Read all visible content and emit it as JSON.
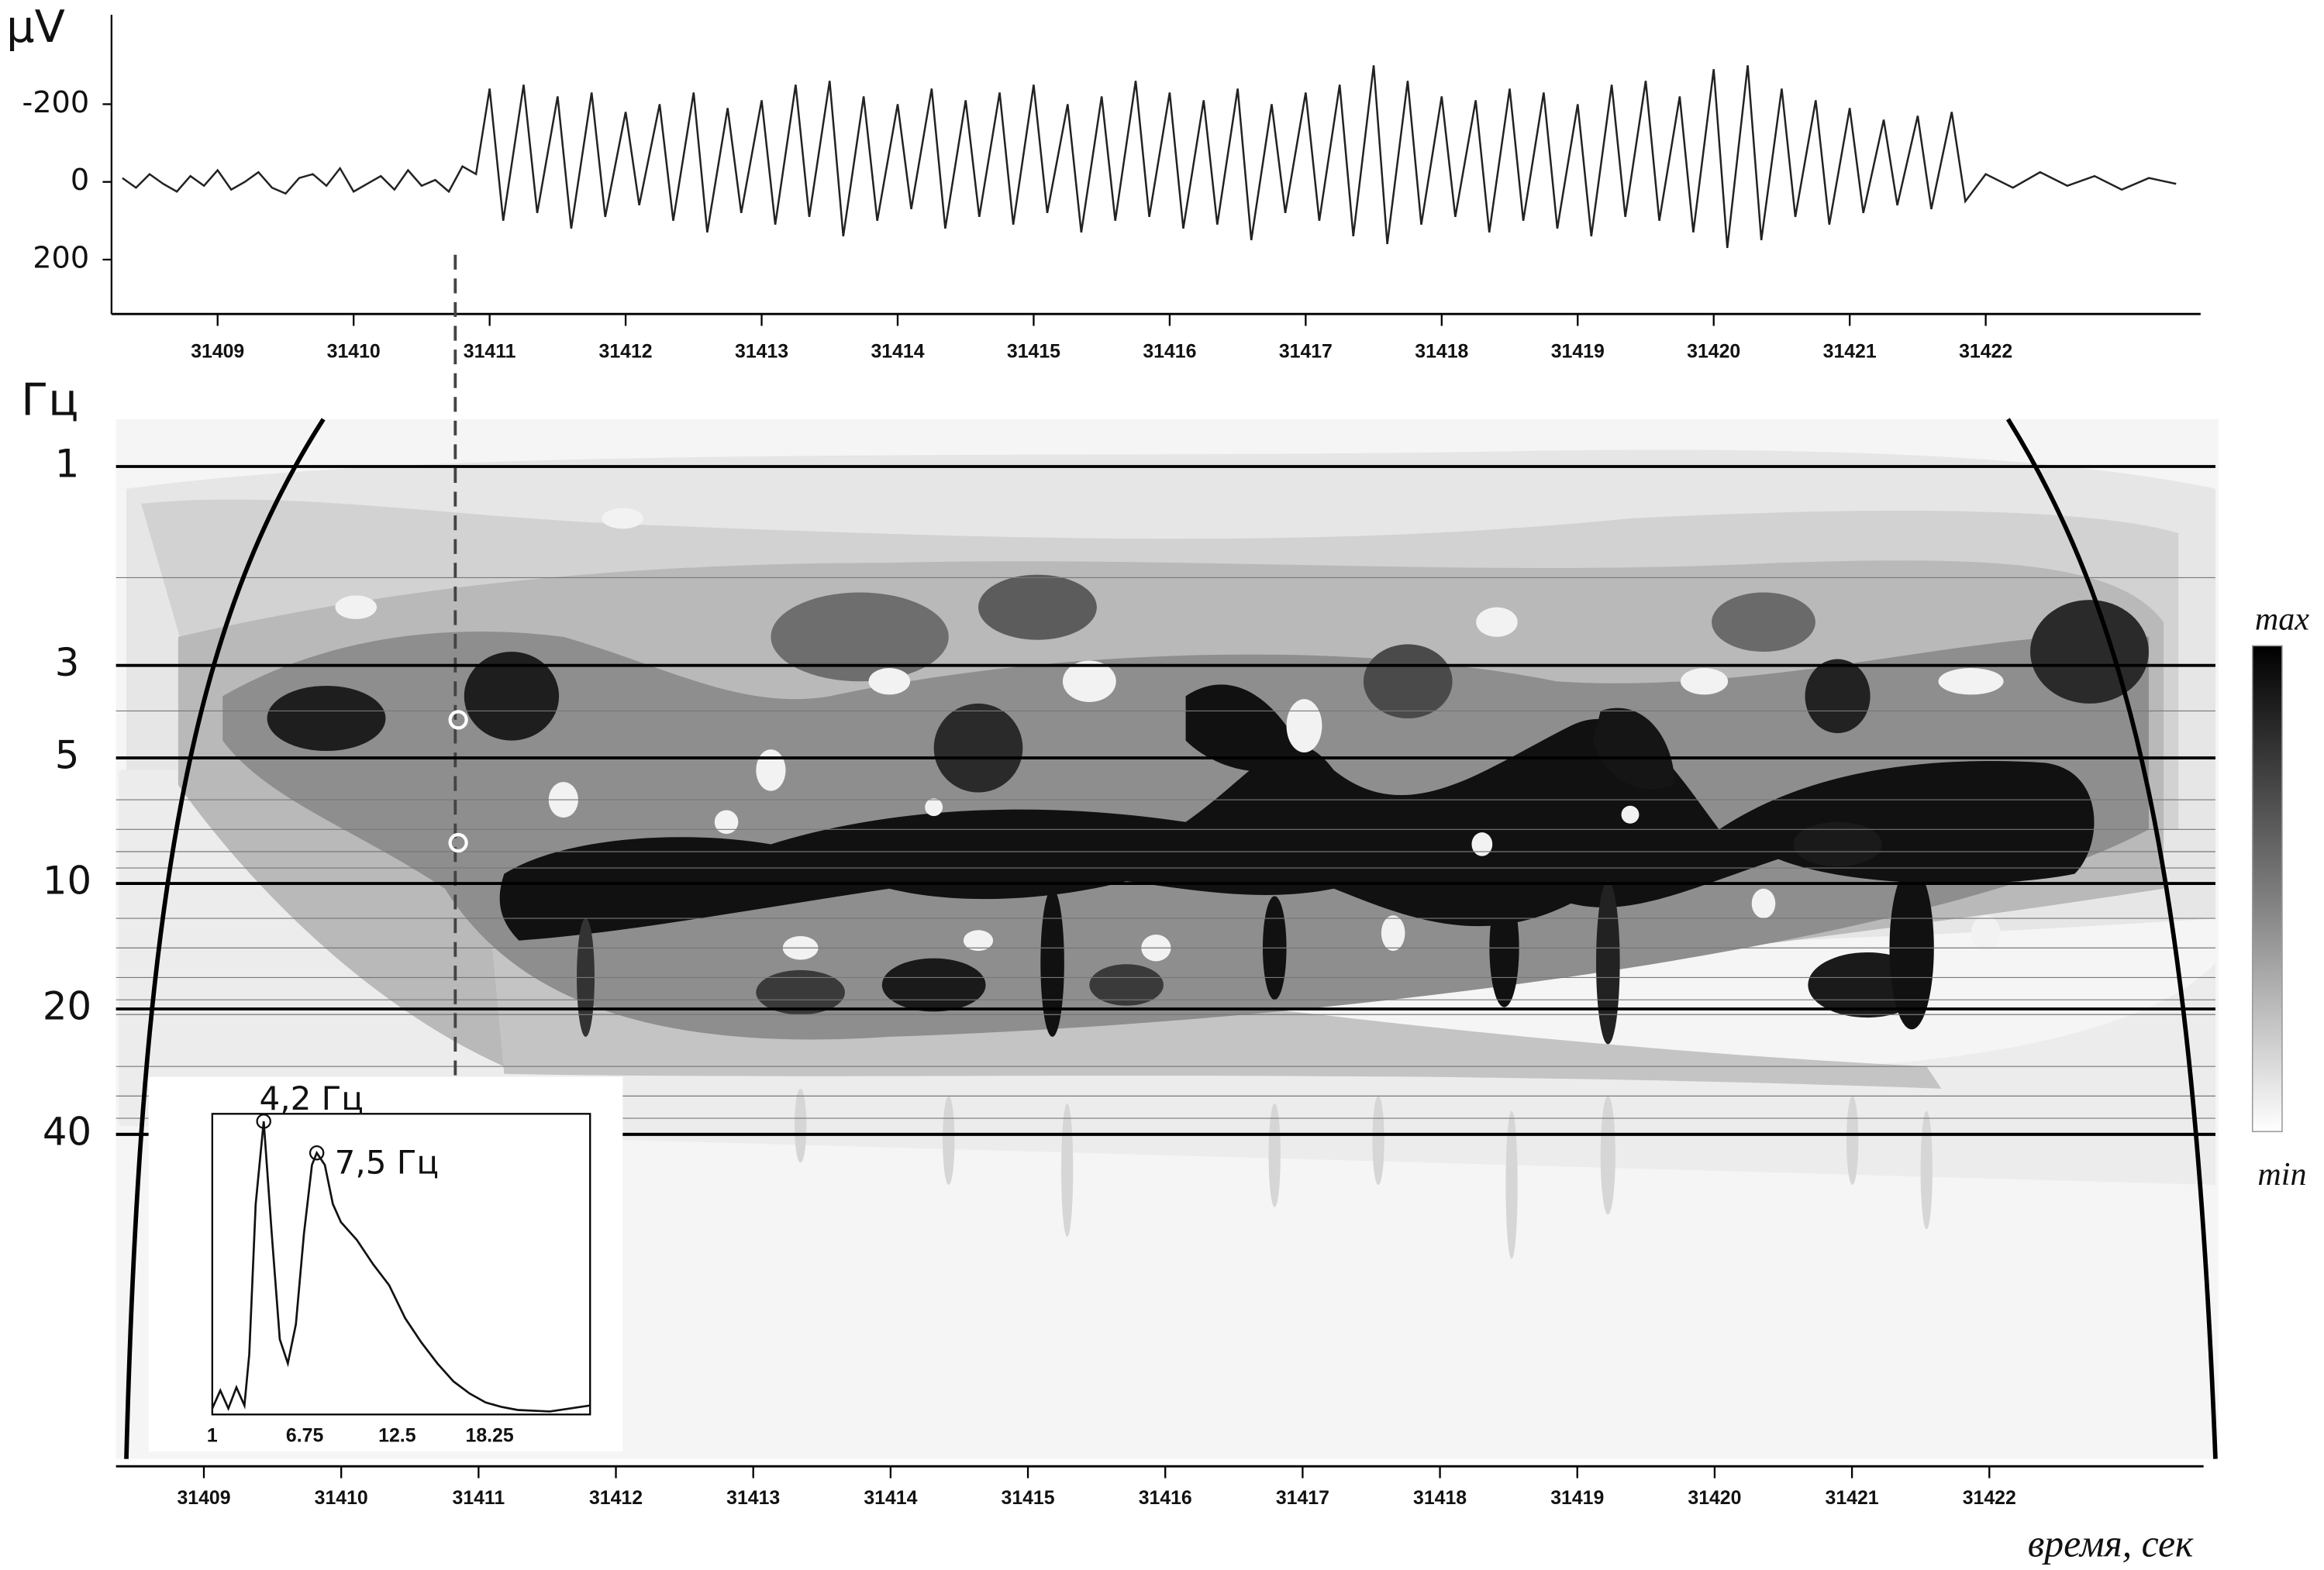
{
  "chart_data": [
    {
      "type": "line",
      "ylabel": "μV",
      "color": "#222222",
      "xlim": [
        31408.22,
        31423.58
      ],
      "xticks": [
        31409,
        31410,
        31411,
        31412,
        31413,
        31414,
        31415,
        31416,
        31417,
        31418,
        31419,
        31420,
        31421,
        31422
      ],
      "ylim": [
        340,
        -430
      ],
      "yticks": [
        {
          "value": -200,
          "label": "-200"
        },
        0,
        200
      ],
      "x": [
        31408.3,
        31408.4,
        31408.5,
        31408.6,
        31408.7,
        31408.8,
        31408.9,
        31409.0,
        31409.1,
        31409.2,
        31409.3,
        31409.4,
        31409.5,
        31409.6,
        31409.7,
        31409.8,
        31409.9,
        31410.0,
        31410.1,
        31410.2,
        31410.3,
        31410.4,
        31410.5,
        31410.6,
        31410.7,
        31410.8,
        31410.9,
        31411,
        31411.1,
        31411.25,
        31411.35,
        31411.5,
        31411.6,
        31411.75,
        31411.85,
        31412,
        31412.1,
        31412.25,
        31412.35,
        31412.5,
        31412.6,
        31412.75,
        31412.85,
        31413,
        31413.1,
        31413.25,
        31413.35,
        31413.5,
        31413.6,
        31413.75,
        31413.85,
        31414,
        31414.1,
        31414.25,
        31414.35,
        31414.5,
        31414.6,
        31414.75,
        31414.85,
        31415,
        31415.1,
        31415.25,
        31415.35,
        31415.5,
        31415.6,
        31415.75,
        31415.85,
        31416,
        31416.1,
        31416.25,
        31416.35,
        31416.5,
        31416.6,
        31416.75,
        31416.85,
        31417,
        31417.1,
        31417.25,
        31417.35,
        31417.5,
        31417.6,
        31417.75,
        31417.85,
        31418,
        31418.1,
        31418.25,
        31418.35,
        31418.5,
        31418.6,
        31418.75,
        31418.85,
        31419,
        31419.1,
        31419.25,
        31419.35,
        31419.5,
        31419.6,
        31419.75,
        31419.85,
        31420,
        31420.1,
        31420.25,
        31420.35,
        31420.5,
        31420.6,
        31420.75,
        31420.85,
        31421,
        31421.1,
        31421.25,
        31421.35,
        31421.5,
        31421.6,
        31421.75,
        31421.85,
        31422.0,
        31422.2,
        31422.4,
        31422.6,
        31422.8,
        31423.0,
        31423.2,
        31423.4
      ],
      "values": [
        -10,
        15,
        -20,
        5,
        25,
        -15,
        10,
        -30,
        20,
        0,
        -25,
        15,
        30,
        -10,
        -20,
        10,
        -35,
        25,
        5,
        -15,
        20,
        -30,
        10,
        -5,
        25,
        -40,
        -20,
        -240,
        100,
        -250,
        80,
        -220,
        120,
        -230,
        90,
        -180,
        60,
        -200,
        100,
        -230,
        130,
        -190,
        80,
        -210,
        110,
        -250,
        90,
        -260,
        140,
        -220,
        100,
        -200,
        70,
        -240,
        120,
        -210,
        90,
        -230,
        110,
        -250,
        80,
        -200,
        130,
        -220,
        100,
        -260,
        90,
        -230,
        120,
        -210,
        110,
        -240,
        150,
        -200,
        80,
        -230,
        100,
        -250,
        140,
        -300,
        160,
        -260,
        110,
        -220,
        90,
        -210,
        130,
        -240,
        100,
        -230,
        120,
        -200,
        140,
        -250,
        90,
        -260,
        100,
        -220,
        130,
        -290,
        170,
        -300,
        150,
        -240,
        90,
        -210,
        110,
        -190,
        80,
        -160,
        60,
        -170,
        70,
        -180,
        50,
        -20,
        15,
        -25,
        10,
        -15,
        20,
        -10,
        5
      ]
    },
    {
      "type": "spectrogram",
      "ylabel": "Гц",
      "xlabel": "время, сек",
      "log_y": true,
      "grid": true,
      "xlim": [
        31408.36,
        31423.56
      ],
      "xticks": [
        31409,
        31410,
        31411,
        31412,
        31413,
        31414,
        31415,
        31416,
        31417,
        31418,
        31419,
        31420,
        31421,
        31422
      ],
      "ylim": [
        0.77,
        240
      ],
      "yticks": [
        1,
        3,
        5,
        10,
        20,
        40
      ],
      "colorbar": {
        "max_label": "max",
        "min_label": "min"
      }
    },
    {
      "type": "line",
      "color": "#111111",
      "xlim": [
        1,
        24.5
      ],
      "xticks": [
        1,
        6.75,
        12.5,
        18.25
      ],
      "ylim": [
        0,
        1
      ],
      "x": [
        1,
        1.5,
        2,
        2.5,
        3,
        3.3,
        3.7,
        4.2,
        4.7,
        5.2,
        5.7,
        6.2,
        6.7,
        7.2,
        7.5,
        8,
        8.5,
        9,
        10,
        11,
        12,
        13,
        14,
        15,
        16,
        17,
        18,
        19,
        20,
        22,
        24.5
      ],
      "values": [
        0.02,
        0.08,
        0.02,
        0.09,
        0.03,
        0.2,
        0.7,
        0.975,
        0.6,
        0.25,
        0.17,
        0.3,
        0.6,
        0.83,
        0.87,
        0.83,
        0.7,
        0.64,
        0.58,
        0.5,
        0.43,
        0.32,
        0.24,
        0.17,
        0.11,
        0.07,
        0.04,
        0.025,
        0.015,
        0.01,
        0.03
      ],
      "annotations": [
        "4,2 Гц",
        "7,5 Гц"
      ]
    }
  ]
}
